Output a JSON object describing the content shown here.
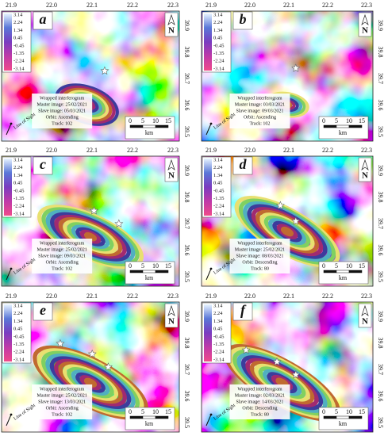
{
  "lon_ticks": [
    "21.9",
    "22.0",
    "22.1",
    "22.2",
    "22.3"
  ],
  "lat_ticks": [
    "39.9",
    "39.8",
    "39.7",
    "39.6",
    "39.5"
  ],
  "colorbar_labels": [
    "3.14",
    "2.24",
    "1.34",
    "0.45",
    "-0.45",
    "-1.35",
    "-2.24",
    "-3.14"
  ],
  "scale_labels": [
    "0",
    "5",
    "10",
    "15"
  ],
  "scale_unit": "km",
  "north": "N",
  "los": "Line of Sight",
  "panels": [
    {
      "label": "a",
      "info": [
        "Wrapped interferogram",
        "Master image: 25/02/2021",
        "Slave image: 05/03/2021",
        "Orbit: Ascending",
        "Track: 102"
      ]
    },
    {
      "label": "b",
      "info": [
        "Wrapped interferogram",
        "Master image: 03/03/2021",
        "Slave image: 09/03/2021",
        "Orbit: Ascending",
        "Track: 102"
      ]
    },
    {
      "label": "c",
      "info": [
        "Wrapped interferogram",
        "Master image: 25/02/2021",
        "Slave image: 09/03/2021",
        "Orbit: Ascending",
        "Track: 102"
      ]
    },
    {
      "label": "d",
      "info": [
        "Wrapped interferogram",
        "Master image: 25/02/2021",
        "Slave image: 08/03/2021",
        "Orbit: Descending",
        "Track: 80"
      ]
    },
    {
      "label": "e",
      "info": [
        "Wrapped interferogram",
        "Master image: 25/02/2021",
        "Slave image: 13/03/2021",
        "Orbit: Ascending",
        "Track: 102"
      ]
    },
    {
      "label": "f",
      "info": [
        "Wrapped interferogram",
        "Master image: 02/03/2021",
        "Slave image: 14/03/2021",
        "Orbit: Descending",
        "Track: 80"
      ]
    }
  ]
}
